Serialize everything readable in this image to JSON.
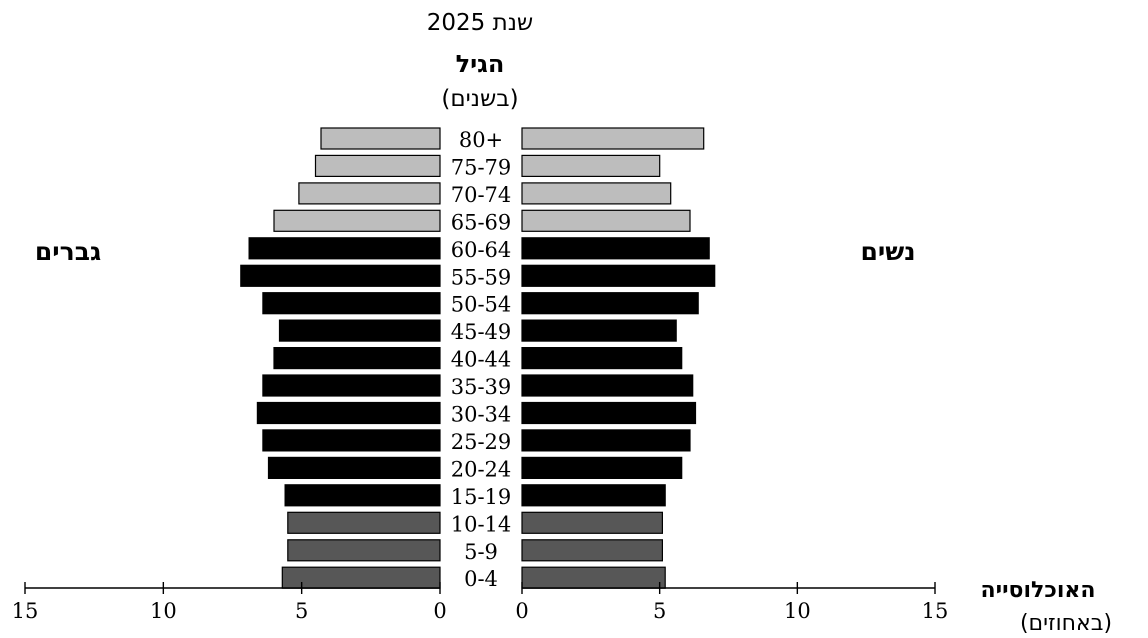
{
  "chart_data": {
    "type": "bar",
    "orientation": "horizontal-population-pyramid",
    "title": "שנת 2025",
    "age_axis_title": "הגיל",
    "age_axis_subtitle": "(בשנים)",
    "value_axis_title": "האוכלוסייה",
    "value_axis_subtitle": "(באחוזים)",
    "categories": [
      "80+",
      "75-79",
      "70-74",
      "65-69",
      "60-64",
      "55-59",
      "50-54",
      "45-49",
      "40-44",
      "35-39",
      "30-34",
      "25-29",
      "20-24",
      "15-19",
      "10-14",
      "5-9",
      "0-4"
    ],
    "series": [
      {
        "name": "גברים",
        "side": "left",
        "values": [
          4.3,
          4.5,
          5.1,
          6.0,
          6.9,
          7.2,
          6.4,
          5.8,
          6.0,
          6.4,
          6.6,
          6.4,
          6.2,
          5.6,
          5.5,
          5.5,
          5.7
        ]
      },
      {
        "name": "נשים",
        "side": "right",
        "values": [
          6.6,
          5.0,
          5.4,
          6.1,
          6.8,
          7.0,
          6.4,
          5.6,
          5.8,
          6.2,
          6.3,
          6.1,
          5.8,
          5.2,
          5.1,
          5.1,
          5.2
        ]
      }
    ],
    "bar_colors": [
      "#bdbdbd",
      "#bdbdbd",
      "#bdbdbd",
      "#bdbdbd",
      "#000000",
      "#000000",
      "#000000",
      "#000000",
      "#000000",
      "#000000",
      "#000000",
      "#000000",
      "#000000",
      "#000000",
      "#575757",
      "#575757",
      "#575757"
    ],
    "xlim": [
      0,
      15
    ],
    "xticks": [
      15,
      10,
      5,
      0
    ],
    "grid": false
  }
}
